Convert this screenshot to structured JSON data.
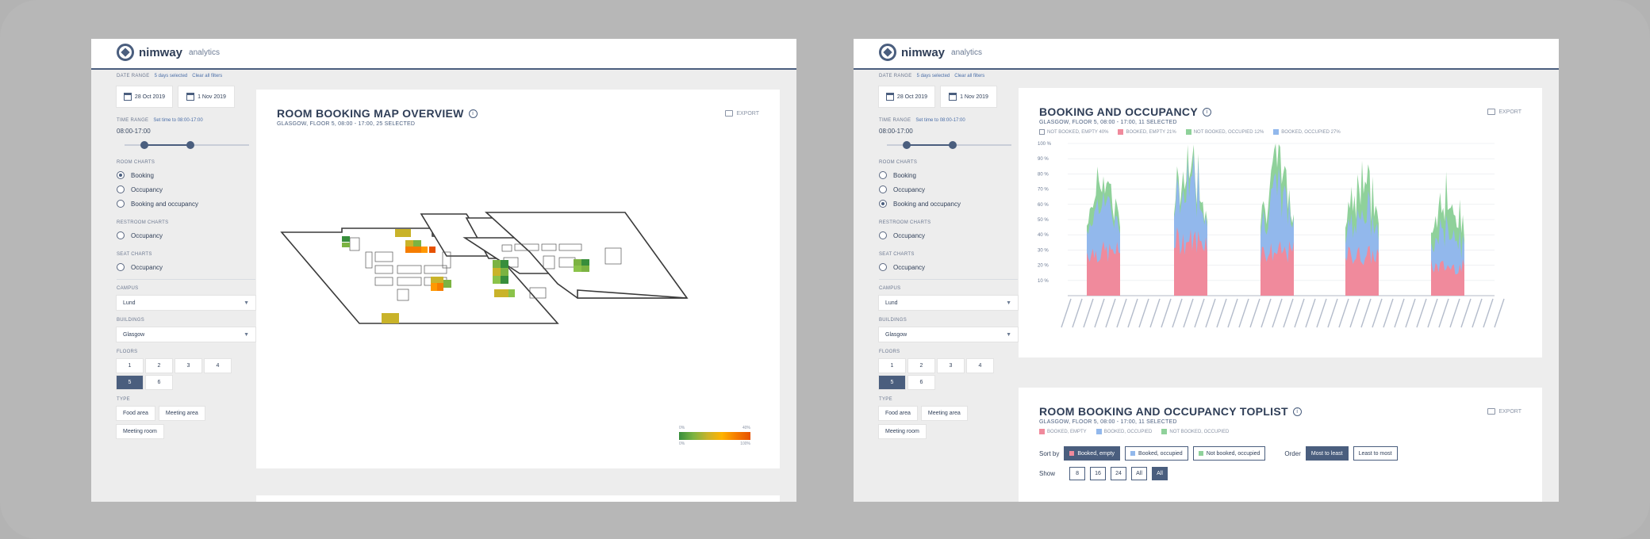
{
  "brand": {
    "name": "nimway",
    "sub": "analytics"
  },
  "sidebar": {
    "date_range_label": "DATE RANGE",
    "days_selected": "5 days selected",
    "clear_filters": "Clear all filters",
    "date_from": "28 Oct 2019",
    "date_to": "1 Nov 2019",
    "time_range_label": "TIME RANGE",
    "time_range_hint": "Set time to 08:00-17:00",
    "time_value": "08:00-17:00",
    "room_charts_label": "ROOM CHARTS",
    "room_options": [
      "Booking",
      "Occupancy",
      "Booking and occupancy"
    ],
    "restroom_label": "RESTROOM CHARTS",
    "restroom_option": "Occupancy",
    "seat_label": "SEAT CHARTS",
    "seat_option": "Occupancy",
    "campus_label": "CAMPUS",
    "campus_value": "Lund",
    "buildings_label": "BUILDINGS",
    "building_value": "Glasgow",
    "floors_label": "FLOORS",
    "floors": [
      "1",
      "2",
      "3",
      "4",
      "5",
      "6"
    ],
    "selected_floor": "5",
    "type_label": "TYPE",
    "types": [
      "Food area",
      "Meeting area"
    ],
    "types_extra_left": "Meeting room",
    "types_extra_right": "Meeting room"
  },
  "map_card": {
    "title": "ROOM BOOKING MAP OVERVIEW",
    "subtitle": "GLASGOW, FLOOR 5, 08:00 - 17:00, 25 SELECTED",
    "export": "EXPORT",
    "scale_min_label": "0%",
    "scale_max_label": "100%",
    "scale_top_left": "0%",
    "scale_top_right": "40%"
  },
  "occupancy_card": {
    "title": "BOOKING AND OCCUPANCY",
    "subtitle": "GLASGOW, FLOOR 5, 08:00 - 17:00, 11 SELECTED",
    "export": "EXPORT",
    "legend": [
      {
        "label": "NOT BOOKED, EMPTY 40%",
        "color": "#ffffff"
      },
      {
        "label": "BOOKED, EMPTY 21%",
        "color": "#f08a9c"
      },
      {
        "label": "NOT BOOKED, OCCUPIED 12%",
        "color": "#8fd19a"
      },
      {
        "label": "BOOKED, OCCUPIED 27%",
        "color": "#92b8ec"
      }
    ]
  },
  "toplist_card": {
    "title": "ROOM BOOKING AND OCCUPANCY TOPLIST",
    "subtitle": "GLASGOW, FLOOR 5, 08:00 - 17:00, 11 SELECTED",
    "export": "EXPORT",
    "legend": [
      "BOOKED, EMPTY",
      "BOOKED, OCCUPIED",
      "NOT BOOKED, OCCUPIED"
    ],
    "sort_label": "Sort by",
    "sort_options": [
      "Booked, empty",
      "Booked, occupied",
      "Not booked, occupied"
    ],
    "order_label": "Order",
    "order_options": [
      "Most to least",
      "Least to most"
    ],
    "show_label": "Show",
    "show_options": [
      "8",
      "16",
      "24",
      "All",
      "All"
    ]
  },
  "chart_data": {
    "type": "area",
    "stacked": true,
    "ylim": [
      0,
      100
    ],
    "y_ticks": [
      "10 %",
      "20 %",
      "30 %",
      "40 %",
      "50 %",
      "60 %",
      "70 %",
      "80 %",
      "90 %",
      "100 %"
    ],
    "days": 5,
    "series": [
      {
        "name": "BOOKED, EMPTY",
        "color": "#f08a9c",
        "day_peaks": [
          30,
          38,
          30,
          28,
          20
        ]
      },
      {
        "name": "BOOKED, OCCUPIED",
        "color": "#92b8ec",
        "day_peaks": [
          40,
          50,
          45,
          35,
          30
        ]
      },
      {
        "name": "NOT BOOKED, OCCUPIED",
        "color": "#8fd19a",
        "day_peaks": [
          20,
          12,
          20,
          30,
          28
        ]
      }
    ]
  },
  "colors": {
    "accent": "#4a5e7e",
    "map_green": "#7cb342",
    "map_orange": "#f57c00",
    "map_yellow": "#c9b32a"
  }
}
